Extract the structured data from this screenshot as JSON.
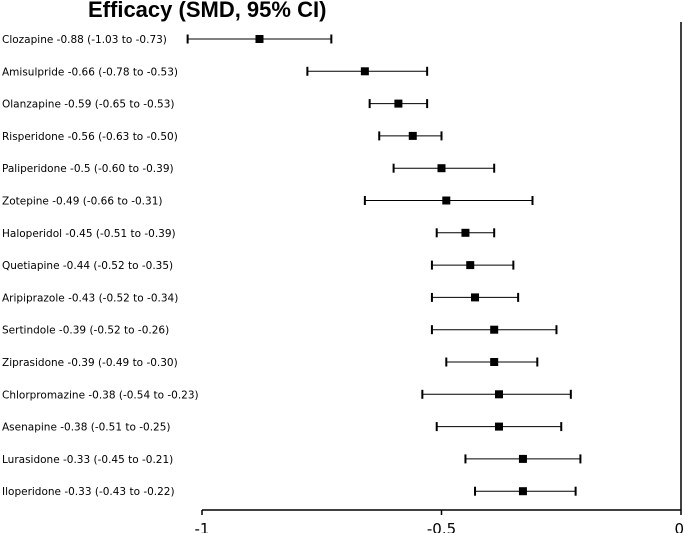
{
  "chart_data": {
    "type": "forest",
    "title": "Efficacy (SMD, 95% CI)",
    "xlabel": "",
    "ylabel": "",
    "xlim": [
      -1,
      0
    ],
    "xticks": [
      -1,
      -0.5,
      0
    ],
    "xtick_labels": [
      "-1",
      "-0.5",
      "0"
    ],
    "rows": [
      {
        "label": "Clozapine -0.88 (-1.03 to -0.73)",
        "estimate": -0.88,
        "lower": -1.03,
        "upper": -0.73
      },
      {
        "label": "Amisulpride -0.66 (-0.78 to -0.53)",
        "estimate": -0.66,
        "lower": -0.78,
        "upper": -0.53
      },
      {
        "label": "Olanzapine -0.59 (-0.65 to -0.53)",
        "estimate": -0.59,
        "lower": -0.65,
        "upper": -0.53
      },
      {
        "label": "Risperidone -0.56 (-0.63 to -0.50)",
        "estimate": -0.56,
        "lower": -0.63,
        "upper": -0.5
      },
      {
        "label": "Paliperidone -0.5 (-0.60 to -0.39)",
        "estimate": -0.5,
        "lower": -0.6,
        "upper": -0.39
      },
      {
        "label": "Zotepine -0.49 (-0.66 to -0.31)",
        "estimate": -0.49,
        "lower": -0.66,
        "upper": -0.31
      },
      {
        "label": "Haloperidol -0.45 (-0.51 to -0.39)",
        "estimate": -0.45,
        "lower": -0.51,
        "upper": -0.39
      },
      {
        "label": "Quetiapine -0.44 (-0.52 to -0.35)",
        "estimate": -0.44,
        "lower": -0.52,
        "upper": -0.35
      },
      {
        "label": "Aripiprazole -0.43 (-0.52 to -0.34)",
        "estimate": -0.43,
        "lower": -0.52,
        "upper": -0.34
      },
      {
        "label": "Sertindole -0.39 (-0.52 to -0.26)",
        "estimate": -0.39,
        "lower": -0.52,
        "upper": -0.26
      },
      {
        "label": "Ziprasidone -0.39 (-0.49 to -0.30)",
        "estimate": -0.39,
        "lower": -0.49,
        "upper": -0.3
      },
      {
        "label": "Chlorpromazine -0.38 (-0.54 to -0.23)",
        "estimate": -0.38,
        "lower": -0.54,
        "upper": -0.23
      },
      {
        "label": "Asenapine -0.38 (-0.51 to -0.25)",
        "estimate": -0.38,
        "lower": -0.51,
        "upper": -0.25
      },
      {
        "label": "Lurasidone -0.33 (-0.45 to -0.21)",
        "estimate": -0.33,
        "lower": -0.45,
        "upper": -0.21
      },
      {
        "label": "Iloperidone -0.33 (-0.43 to -0.22)",
        "estimate": -0.33,
        "lower": -0.43,
        "upper": -0.22
      }
    ],
    "colors": {
      "marker": "#000000",
      "line": "#000000",
      "axis": "#000000"
    }
  }
}
